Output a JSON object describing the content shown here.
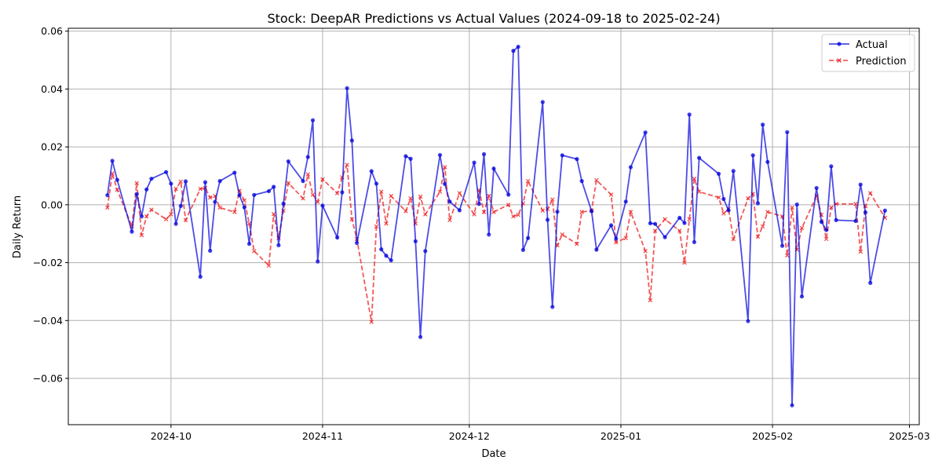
{
  "chart_data": {
    "type": "line",
    "title": "Stock: DeepAR Predictions vs Actual Values (2024-09-18 to 2025-02-24)",
    "xlabel": "Date",
    "ylabel": "Daily Return",
    "xlim": [
      "2024-09-10",
      "2025-03-03"
    ],
    "ylim": [
      -0.076,
      0.061
    ],
    "x_ticks": [
      "2024-10-01",
      "2024-11-01",
      "2024-12-01",
      "2025-01-01",
      "2025-02-01",
      "2025-03-01"
    ],
    "x_tick_labels": [
      "2024-10",
      "2024-11",
      "2024-12",
      "2025-01",
      "2025-02",
      "2025-03"
    ],
    "y_ticks": [
      -0.06,
      -0.04,
      -0.02,
      0.0,
      0.02,
      0.04,
      0.06
    ],
    "y_tick_labels": [
      "−0.06",
      "−0.04",
      "−0.02",
      "0.00",
      "0.02",
      "0.04",
      "0.06"
    ],
    "grid": true,
    "legend_position": "top-right",
    "colors": {
      "actual": "#0000dd",
      "prediction": "#ee2222"
    },
    "series": [
      {
        "name": "Actual",
        "style": "solid-dot",
        "points": [
          [
            "2024-09-18",
            0.0033
          ],
          [
            "2024-09-19",
            0.0152
          ],
          [
            "2024-09-20",
            0.0086
          ],
          [
            "2024-09-23",
            -0.0093
          ],
          [
            "2024-09-24",
            0.0037
          ],
          [
            "2024-09-25",
            -0.004
          ],
          [
            "2024-09-26",
            0.0053
          ],
          [
            "2024-09-27",
            0.009
          ],
          [
            "2024-09-30",
            0.0113
          ],
          [
            "2024-10-01",
            0.0073
          ],
          [
            "2024-10-02",
            -0.0066
          ],
          [
            "2024-10-03",
            -0.0004
          ],
          [
            "2024-10-04",
            0.0081
          ],
          [
            "2024-10-07",
            -0.0249
          ],
          [
            "2024-10-08",
            0.0078
          ],
          [
            "2024-10-09",
            -0.0159
          ],
          [
            "2024-10-10",
            0.001
          ],
          [
            "2024-10-11",
            0.0082
          ],
          [
            "2024-10-14",
            0.0111
          ],
          [
            "2024-10-15",
            0.0033
          ],
          [
            "2024-10-16",
            -0.0009
          ],
          [
            "2024-10-17",
            -0.0135
          ],
          [
            "2024-10-18",
            0.0034
          ],
          [
            "2024-10-21",
            0.0047
          ],
          [
            "2024-10-22",
            0.0062
          ],
          [
            "2024-10-23",
            -0.014
          ],
          [
            "2024-10-24",
            0.0004
          ],
          [
            "2024-10-25",
            0.015
          ],
          [
            "2024-10-28",
            0.0082
          ],
          [
            "2024-10-29",
            0.0165
          ],
          [
            "2024-10-30",
            0.0292
          ],
          [
            "2024-10-31",
            -0.0196
          ],
          [
            "2024-11-01",
            -0.0003
          ],
          [
            "2024-11-04",
            -0.0113
          ],
          [
            "2024-11-05",
            0.0043
          ],
          [
            "2024-11-06",
            0.0403
          ],
          [
            "2024-11-07",
            0.0222
          ],
          [
            "2024-11-08",
            -0.0132
          ],
          [
            "2024-11-11",
            0.0116
          ],
          [
            "2024-11-12",
            0.0073
          ],
          [
            "2024-11-13",
            -0.0154
          ],
          [
            "2024-11-14",
            -0.0176
          ],
          [
            "2024-11-15",
            -0.0192
          ],
          [
            "2024-11-18",
            0.0168
          ],
          [
            "2024-11-19",
            0.0159
          ],
          [
            "2024-11-20",
            -0.0126
          ],
          [
            "2024-11-21",
            -0.0457
          ],
          [
            "2024-11-22",
            -0.016
          ],
          [
            "2024-11-25",
            0.0172
          ],
          [
            "2024-11-26",
            0.0072
          ],
          [
            "2024-11-27",
            0.0011
          ],
          [
            "2024-11-29",
            -0.0019
          ],
          [
            "2024-12-02",
            0.0146
          ],
          [
            "2024-12-03",
            0.0003
          ],
          [
            "2024-12-04",
            0.0175
          ],
          [
            "2024-12-05",
            -0.0103
          ],
          [
            "2024-12-06",
            0.0125
          ],
          [
            "2024-12-09",
            0.0035
          ],
          [
            "2024-12-10",
            0.0532
          ],
          [
            "2024-12-11",
            0.0546
          ],
          [
            "2024-12-12",
            -0.0156
          ],
          [
            "2024-12-13",
            -0.0115
          ],
          [
            "2024-12-16",
            0.0355
          ],
          [
            "2024-12-17",
            -0.0052
          ],
          [
            "2024-12-18",
            -0.0353
          ],
          [
            "2024-12-19",
            -0.0024
          ],
          [
            "2024-12-20",
            0.0171
          ],
          [
            "2024-12-23",
            0.0158
          ],
          [
            "2024-12-24",
            0.0082
          ],
          [
            "2024-12-26",
            -0.0022
          ],
          [
            "2024-12-27",
            -0.0155
          ],
          [
            "2024-12-30",
            -0.0071
          ],
          [
            "2024-12-31",
            -0.0117
          ],
          [
            "2025-01-02",
            0.0011
          ],
          [
            "2025-01-03",
            0.013
          ],
          [
            "2025-01-06",
            0.025
          ],
          [
            "2025-01-07",
            -0.0064
          ],
          [
            "2025-01-08",
            -0.0066
          ],
          [
            "2025-01-10",
            -0.0112
          ],
          [
            "2025-01-13",
            -0.0045
          ],
          [
            "2025-01-14",
            -0.0063
          ],
          [
            "2025-01-15",
            0.0312
          ],
          [
            "2025-01-16",
            -0.0129
          ],
          [
            "2025-01-17",
            0.0162
          ],
          [
            "2025-01-21",
            0.0107
          ],
          [
            "2025-01-22",
            0.002
          ],
          [
            "2025-01-23",
            -0.0019
          ],
          [
            "2025-01-24",
            0.0117
          ],
          [
            "2025-01-27",
            -0.0402
          ],
          [
            "2025-01-28",
            0.0171
          ],
          [
            "2025-01-29",
            0.0005
          ],
          [
            "2025-01-30",
            0.0277
          ],
          [
            "2025-01-31",
            0.0148
          ],
          [
            "2025-02-03",
            -0.0142
          ],
          [
            "2025-02-04",
            0.0251
          ],
          [
            "2025-02-05",
            -0.0693
          ],
          [
            "2025-02-06",
            0.0001
          ],
          [
            "2025-02-07",
            -0.0317
          ],
          [
            "2025-02-10",
            0.0058
          ],
          [
            "2025-02-11",
            -0.0059
          ],
          [
            "2025-02-12",
            -0.0087
          ],
          [
            "2025-02-13",
            0.0133
          ],
          [
            "2025-02-14",
            -0.0053
          ],
          [
            "2025-02-18",
            -0.0056
          ],
          [
            "2025-02-19",
            0.007
          ],
          [
            "2025-02-20",
            -0.0026
          ],
          [
            "2025-02-21",
            -0.027
          ],
          [
            "2025-02-24",
            -0.002
          ]
        ]
      },
      {
        "name": "Prediction",
        "style": "dashed-x",
        "points": [
          [
            "2024-09-18",
            -0.001
          ],
          [
            "2024-09-19",
            0.0108
          ],
          [
            "2024-09-20",
            0.0052
          ],
          [
            "2024-09-23",
            -0.0075
          ],
          [
            "2024-09-24",
            0.0075
          ],
          [
            "2024-09-25",
            -0.0105
          ],
          [
            "2024-09-26",
            -0.004
          ],
          [
            "2024-09-27",
            -0.0017
          ],
          [
            "2024-09-30",
            -0.005
          ],
          [
            "2024-10-01",
            -0.0033
          ],
          [
            "2024-10-02",
            0.0055
          ],
          [
            "2024-10-03",
            0.008
          ],
          [
            "2024-10-04",
            -0.0053
          ],
          [
            "2024-10-07",
            0.0055
          ],
          [
            "2024-10-08",
            0.0058
          ],
          [
            "2024-10-09",
            0.0025
          ],
          [
            "2024-10-10",
            0.003
          ],
          [
            "2024-10-11",
            -0.001
          ],
          [
            "2024-10-14",
            -0.0025
          ],
          [
            "2024-10-15",
            0.0048
          ],
          [
            "2024-10-16",
            0.0015
          ],
          [
            "2024-10-17",
            -0.0065
          ],
          [
            "2024-10-18",
            -0.016
          ],
          [
            "2024-10-21",
            -0.021
          ],
          [
            "2024-10-22",
            -0.0032
          ],
          [
            "2024-10-23",
            -0.0115
          ],
          [
            "2024-10-24",
            -0.002
          ],
          [
            "2024-10-25",
            0.0075
          ],
          [
            "2024-10-28",
            0.0022
          ],
          [
            "2024-10-29",
            0.0105
          ],
          [
            "2024-10-30",
            0.0035
          ],
          [
            "2024-10-31",
            0.001
          ],
          [
            "2024-11-01",
            0.0088
          ],
          [
            "2024-11-04",
            0.004
          ],
          [
            "2024-11-05",
            0.0095
          ],
          [
            "2024-11-06",
            0.0138
          ],
          [
            "2024-11-07",
            -0.005
          ],
          [
            "2024-11-08",
            -0.0118
          ],
          [
            "2024-11-11",
            -0.0405
          ],
          [
            "2024-11-12",
            -0.0075
          ],
          [
            "2024-11-13",
            0.0045
          ],
          [
            "2024-11-14",
            -0.0065
          ],
          [
            "2024-11-15",
            0.003
          ],
          [
            "2024-11-18",
            -0.0022
          ],
          [
            "2024-11-19",
            0.0022
          ],
          [
            "2024-11-20",
            -0.0065
          ],
          [
            "2024-11-21",
            0.0028
          ],
          [
            "2024-11-22",
            -0.0033
          ],
          [
            "2024-11-25",
            0.0045
          ],
          [
            "2024-11-26",
            0.013
          ],
          [
            "2024-11-27",
            -0.0053
          ],
          [
            "2024-11-29",
            0.004
          ],
          [
            "2024-12-02",
            -0.0033
          ],
          [
            "2024-12-03",
            0.005
          ],
          [
            "2024-12-04",
            -0.0025
          ],
          [
            "2024-12-05",
            0.003
          ],
          [
            "2024-12-06",
            -0.0025
          ],
          [
            "2024-12-09",
            0.0
          ],
          [
            "2024-12-10",
            -0.004
          ],
          [
            "2024-12-11",
            -0.0035
          ],
          [
            "2024-12-12",
            0.0005
          ],
          [
            "2024-12-13",
            0.0082
          ],
          [
            "2024-12-16",
            -0.002
          ],
          [
            "2024-12-17",
            -0.0015
          ],
          [
            "2024-12-18",
            0.0018
          ],
          [
            "2024-12-19",
            -0.014
          ],
          [
            "2024-12-20",
            -0.0103
          ],
          [
            "2024-12-23",
            -0.0135
          ],
          [
            "2024-12-24",
            -0.0025
          ],
          [
            "2024-12-26",
            -0.002
          ],
          [
            "2024-12-27",
            0.0085
          ],
          [
            "2024-12-30",
            0.0035
          ],
          [
            "2024-12-31",
            -0.013
          ],
          [
            "2025-01-02",
            -0.0115
          ],
          [
            "2025-01-03",
            -0.0025
          ],
          [
            "2025-01-06",
            -0.016
          ],
          [
            "2025-01-07",
            -0.033
          ],
          [
            "2025-01-08",
            -0.009
          ],
          [
            "2025-01-10",
            -0.005
          ],
          [
            "2025-01-13",
            -0.009
          ],
          [
            "2025-01-14",
            -0.02
          ],
          [
            "2025-01-15",
            -0.005
          ],
          [
            "2025-01-16",
            0.009
          ],
          [
            "2025-01-17",
            0.0045
          ],
          [
            "2025-01-21",
            0.0025
          ],
          [
            "2025-01-22",
            -0.003
          ],
          [
            "2025-01-23",
            -0.0015
          ],
          [
            "2025-01-24",
            -0.0118
          ],
          [
            "2025-01-27",
            0.0022
          ],
          [
            "2025-01-28",
            0.0038
          ],
          [
            "2025-01-29",
            -0.011
          ],
          [
            "2025-01-30",
            -0.0075
          ],
          [
            "2025-01-31",
            -0.0025
          ],
          [
            "2025-02-03",
            -0.004
          ],
          [
            "2025-02-04",
            -0.0175
          ],
          [
            "2025-02-05",
            -0.001
          ],
          [
            "2025-02-06",
            -0.0155
          ],
          [
            "2025-02-07",
            -0.008
          ],
          [
            "2025-02-10",
            0.003
          ],
          [
            "2025-02-11",
            -0.0035
          ],
          [
            "2025-02-12",
            -0.0118
          ],
          [
            "2025-02-13",
            -0.001
          ],
          [
            "2025-02-14",
            0.0003
          ],
          [
            "2025-02-18",
            0.0003
          ],
          [
            "2025-02-19",
            -0.0162
          ],
          [
            "2025-02-20",
            -0.0005
          ],
          [
            "2025-02-21",
            0.004
          ],
          [
            "2025-02-24",
            -0.0045
          ]
        ]
      }
    ]
  }
}
